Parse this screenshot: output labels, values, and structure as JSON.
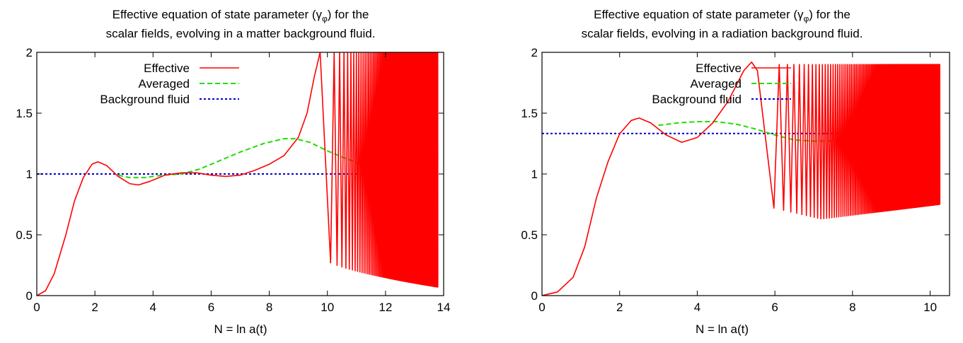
{
  "chart_data": [
    {
      "type": "line",
      "title_line1": "Effective equation of state parameter (γ",
      "title_sub": "φ",
      "title_line1_end": ") for the",
      "title_line2": "scalar fields, evolving in a matter background fluid.",
      "xlabel": "N = ln a(t)",
      "ylabel": "",
      "xlim": [
        0,
        14
      ],
      "ylim": [
        0,
        2
      ],
      "xticks": [
        0,
        2,
        4,
        6,
        8,
        10,
        12,
        14
      ],
      "yticks": [
        0,
        0.5,
        1,
        1.5,
        2
      ],
      "ytick_labels": [
        "0",
        "0.5",
        "1",
        "1.5",
        "2"
      ],
      "grid": false,
      "legend_position": "top-center",
      "series": [
        {
          "name": "Effective",
          "color": "#ff0000",
          "style": "solid",
          "points": [
            [
              0,
              0
            ],
            [
              0.3,
              0.04
            ],
            [
              0.6,
              0.18
            ],
            [
              1.0,
              0.5
            ],
            [
              1.3,
              0.78
            ],
            [
              1.6,
              0.97
            ],
            [
              1.9,
              1.08
            ],
            [
              2.1,
              1.1
            ],
            [
              2.4,
              1.07
            ],
            [
              2.8,
              0.98
            ],
            [
              3.2,
              0.92
            ],
            [
              3.5,
              0.91
            ],
            [
              3.9,
              0.94
            ],
            [
              4.4,
              0.99
            ],
            [
              5.0,
              1.01
            ],
            [
              5.5,
              1.01
            ],
            [
              6.0,
              0.99
            ],
            [
              6.5,
              0.98
            ],
            [
              7.0,
              0.99
            ],
            [
              7.5,
              1.03
            ],
            [
              8.0,
              1.08
            ],
            [
              8.5,
              1.15
            ],
            [
              9.0,
              1.3
            ],
            [
              9.3,
              1.5
            ],
            [
              9.55,
              1.8
            ],
            [
              9.75,
              2.0
            ]
          ],
          "oscillation": {
            "start": 9.75,
            "end": 13.8,
            "start_period": 0.72,
            "end_period": 0.012,
            "start_min": 0.33,
            "end_min": 0.07,
            "max": 2.0
          }
        },
        {
          "name": "Averaged",
          "color": "#22dd00",
          "style": "dashed",
          "points": [
            [
              2.8,
              0.99
            ],
            [
              3.2,
              0.97
            ],
            [
              3.7,
              0.97
            ],
            [
              4.3,
              0.99
            ],
            [
              5.0,
              1.0
            ],
            [
              5.6,
              1.04
            ],
            [
              6.2,
              1.1
            ],
            [
              7.0,
              1.18
            ],
            [
              7.8,
              1.25
            ],
            [
              8.5,
              1.29
            ],
            [
              8.9,
              1.29
            ],
            [
              9.4,
              1.26
            ],
            [
              10.0,
              1.19
            ],
            [
              10.6,
              1.13
            ],
            [
              11.2,
              1.08
            ],
            [
              12.0,
              1.05
            ],
            [
              13.0,
              1.04
            ],
            [
              13.8,
              1.03
            ]
          ]
        },
        {
          "name": "Background fluid",
          "color": "#0000cc",
          "style": "dotted",
          "points": [
            [
              0,
              1
            ],
            [
              13.8,
              1
            ]
          ]
        }
      ]
    },
    {
      "type": "line",
      "title_line1": "Effective equation of state parameter (γ",
      "title_sub": "φ",
      "title_line1_end": ") for the",
      "title_line2": "scalar fields, evolving in a radiation background fluid.",
      "xlabel": "N = ln a(t)",
      "ylabel": "",
      "xlim": [
        0,
        10.5
      ],
      "ylim": [
        0,
        2
      ],
      "xticks": [
        0,
        2,
        4,
        6,
        8,
        10
      ],
      "yticks": [
        0,
        0.5,
        1,
        1.5,
        2
      ],
      "ytick_labels": [
        "0",
        "0.5",
        "1",
        "1.5",
        "2"
      ],
      "grid": false,
      "legend_position": "top-center",
      "series": [
        {
          "name": "Effective",
          "color": "#ff0000",
          "style": "solid",
          "points": [
            [
              0,
              0
            ],
            [
              0.4,
              0.03
            ],
            [
              0.8,
              0.15
            ],
            [
              1.1,
              0.4
            ],
            [
              1.4,
              0.8
            ],
            [
              1.7,
              1.1
            ],
            [
              2.0,
              1.33
            ],
            [
              2.3,
              1.44
            ],
            [
              2.5,
              1.46
            ],
            [
              2.8,
              1.42
            ],
            [
              3.2,
              1.32
            ],
            [
              3.6,
              1.26
            ],
            [
              4.0,
              1.3
            ],
            [
              4.4,
              1.42
            ],
            [
              4.8,
              1.6
            ],
            [
              5.2,
              1.85
            ],
            [
              5.4,
              1.92
            ],
            [
              5.55,
              1.85
            ]
          ],
          "oscillation": {
            "start": 5.55,
            "end": 10.25,
            "start_period": 0.85,
            "end_period": 0.012,
            "start_min": 0.75,
            "mid_min": 0.63,
            "end_min": 0.75,
            "max": 1.9
          }
        },
        {
          "name": "Averaged",
          "color": "#22dd00",
          "style": "dashed",
          "points": [
            [
              3.0,
              1.4
            ],
            [
              3.5,
              1.42
            ],
            [
              4.0,
              1.43
            ],
            [
              4.5,
              1.43
            ],
            [
              5.0,
              1.41
            ],
            [
              5.5,
              1.37
            ],
            [
              6.0,
              1.32
            ],
            [
              6.5,
              1.28
            ],
            [
              7.0,
              1.27
            ],
            [
              7.5,
              1.27
            ],
            [
              8.0,
              1.27
            ],
            [
              8.5,
              1.28
            ],
            [
              9.0,
              1.29
            ],
            [
              9.5,
              1.31
            ],
            [
              10.0,
              1.32
            ],
            [
              10.25,
              1.33
            ]
          ]
        },
        {
          "name": "Background fluid",
          "color": "#0000cc",
          "style": "dotted",
          "points": [
            [
              0,
              1.333
            ],
            [
              10.25,
              1.333
            ]
          ]
        }
      ]
    }
  ]
}
